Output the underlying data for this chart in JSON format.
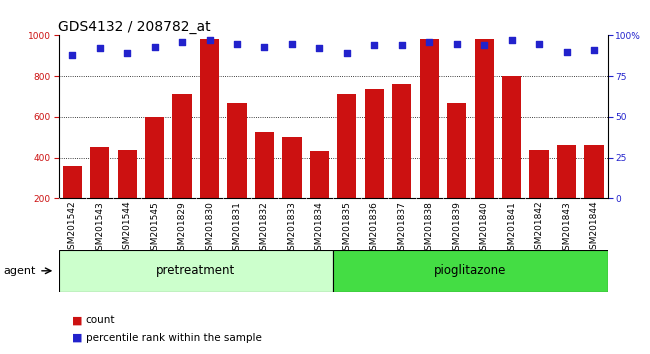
{
  "title": "GDS4132 / 208782_at",
  "categories": [
    "GSM201542",
    "GSM201543",
    "GSM201544",
    "GSM201545",
    "GSM201829",
    "GSM201830",
    "GSM201831",
    "GSM201832",
    "GSM201833",
    "GSM201834",
    "GSM201835",
    "GSM201836",
    "GSM201837",
    "GSM201838",
    "GSM201839",
    "GSM201840",
    "GSM201841",
    "GSM201842",
    "GSM201843",
    "GSM201844"
  ],
  "bar_values": [
    360,
    450,
    435,
    600,
    710,
    980,
    670,
    525,
    500,
    430,
    710,
    735,
    760,
    980,
    670,
    980,
    800,
    435,
    460,
    460
  ],
  "percentile_values": [
    88,
    92,
    89,
    93,
    96,
    97,
    95,
    93,
    95,
    92,
    89,
    94,
    94,
    96,
    95,
    94,
    97,
    95,
    90,
    91
  ],
  "bar_color": "#cc1111",
  "dot_color": "#2222cc",
  "ylim_left": [
    200,
    1000
  ],
  "yticks_left": [
    200,
    400,
    600,
    800,
    1000
  ],
  "yticks_right": [
    0,
    25,
    50,
    75,
    100
  ],
  "ytick_labels_right": [
    "0",
    "25",
    "50",
    "75",
    "100%"
  ],
  "n_pretreatment": 10,
  "n_pioglitazone": 10,
  "pretreatment_color": "#ccffcc",
  "pioglitazone_color": "#44dd44",
  "agent_label": "agent",
  "pretreatment_label": "pretreatment",
  "pioglitazone_label": "pioglitazone",
  "legend_count": "count",
  "legend_percentile": "percentile rank within the sample",
  "title_fontsize": 10,
  "tick_fontsize": 6.5,
  "legend_fontsize": 7.5
}
